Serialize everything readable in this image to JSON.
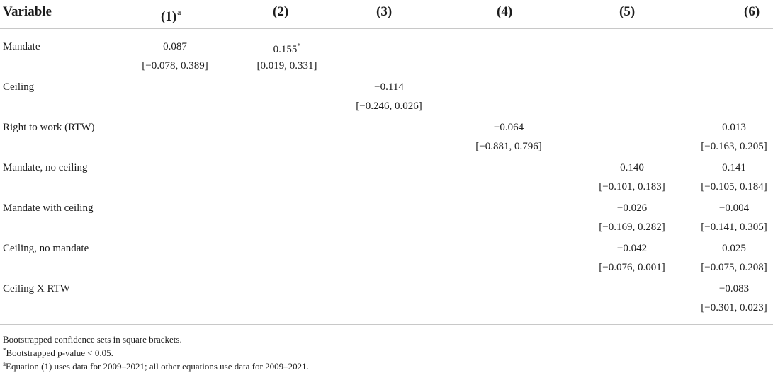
{
  "table": {
    "header": {
      "variable": "Variable",
      "columns": [
        {
          "label": "(1)",
          "mark": "a"
        },
        {
          "label": "(2)",
          "mark": ""
        },
        {
          "label": "(3)",
          "mark": ""
        },
        {
          "label": "(4)",
          "mark": ""
        },
        {
          "label": "(5)",
          "mark": ""
        },
        {
          "label": "(6)",
          "mark": ""
        }
      ]
    },
    "rows": [
      {
        "label": "Mandate",
        "cells": [
          {
            "coef": "0.087",
            "mark": "",
            "ci": "[−0.078, 0.389]"
          },
          {
            "coef": "0.155",
            "mark": "*",
            "ci": "[0.019, 0.331]"
          },
          {},
          {},
          {},
          {}
        ]
      },
      {
        "label": "Ceiling",
        "cells": [
          {},
          {},
          {
            "coef": "−0.114",
            "mark": "",
            "ci": "[−0.246, 0.026]"
          },
          {},
          {},
          {}
        ]
      },
      {
        "label": "Right to work (RTW)",
        "cells": [
          {},
          {},
          {},
          {
            "coef": "−0.064",
            "mark": "",
            "ci": "[−0.881, 0.796]"
          },
          {},
          {
            "coef": "0.013",
            "mark": "",
            "ci": "[−0.163, 0.205]"
          }
        ]
      },
      {
        "label": "Mandate, no ceiling",
        "cells": [
          {},
          {},
          {},
          {},
          {
            "coef": "0.140",
            "mark": "",
            "ci": "[−0.101, 0.183]"
          },
          {
            "coef": "0.141",
            "mark": "",
            "ci": "[−0.105, 0.184]"
          }
        ]
      },
      {
        "label": "Mandate with ceiling",
        "cells": [
          {},
          {},
          {},
          {},
          {
            "coef": "−0.026",
            "mark": "",
            "ci": "[−0.169, 0.282]"
          },
          {
            "coef": "−0.004",
            "mark": "",
            "ci": "[−0.141, 0.305]"
          }
        ]
      },
      {
        "label": "Ceiling, no mandate",
        "cells": [
          {},
          {},
          {},
          {},
          {
            "coef": "−0.042",
            "mark": "",
            "ci": "[−0.076, 0.001]"
          },
          {
            "coef": "0.025",
            "mark": "",
            "ci": "[−0.075, 0.208]"
          }
        ]
      },
      {
        "label": "Ceiling X RTW",
        "cells": [
          {},
          {},
          {},
          {},
          {},
          {
            "coef": "−0.083",
            "mark": "",
            "ci": "[−0.301, 0.023]"
          }
        ]
      }
    ]
  },
  "footnotes": [
    {
      "mark": "",
      "text": "Bootstrapped confidence sets in square brackets."
    },
    {
      "mark": "*",
      "text": "Bootstrapped p-value < 0.05."
    },
    {
      "mark": "a",
      "text": "Equation (1) uses data for 2009–2021; all other equations use data for 2009–2021."
    }
  ]
}
